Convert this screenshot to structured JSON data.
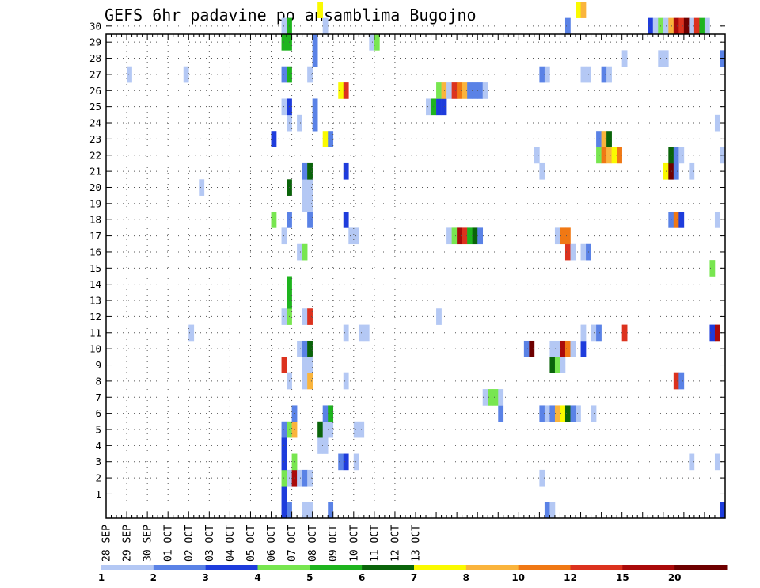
{
  "chart_data": {
    "type": "heatmap",
    "title": "GEFS 6hr padavine po ansamblima Bugojno",
    "xlabel": "",
    "ylabel": "",
    "x_tick_labels": [
      "28 SEP",
      "29 SEP",
      "30 SEP",
      "01 OCT",
      "02 OCT",
      "03 OCT",
      "04 OCT",
      "05 OCT",
      "06 OCT",
      "07 OCT",
      "08 OCT",
      "09 OCT",
      "10 OCT",
      "11 OCT",
      "12 OCT",
      "13 OCT"
    ],
    "x_step": "6hr",
    "y_tick_labels": [
      "1",
      "2",
      "3",
      "4",
      "5",
      "6",
      "7",
      "8",
      "9",
      "10",
      "11",
      "12",
      "13",
      "14",
      "15",
      "16",
      "17",
      "18",
      "19",
      "20",
      "21",
      "22",
      "23",
      "24",
      "25",
      "26",
      "27",
      "28",
      "29",
      "30"
    ],
    "ylim": [
      0,
      30
    ],
    "grid": true,
    "legend": {
      "position": "bottom",
      "thresholds": [
        "1",
        "2",
        "3",
        "4",
        "5",
        "6",
        "7",
        "8",
        "10",
        "12",
        "15",
        "20"
      ],
      "colors": [
        "#b4c8f4",
        "#5a82e6",
        "#1e3cdc",
        "#78e650",
        "#1eb41e",
        "#0a640a",
        "#fafa00",
        "#fab43c",
        "#f07814",
        "#dc321e",
        "#aa0a0a",
        "#6e0000"
      ]
    },
    "cells_note": "each cell: [member, forecast step index (0 = 28 SEP 00Z), color class 1-12]",
    "cells": [
      [
        0,
        34,
        3
      ],
      [
        0,
        35,
        2
      ],
      [
        0,
        38,
        1
      ],
      [
        0,
        39,
        1
      ],
      [
        0,
        43,
        2
      ],
      [
        0,
        85,
        2
      ],
      [
        0,
        86,
        1
      ],
      [
        0,
        119,
        3
      ],
      [
        1,
        34,
        3
      ],
      [
        2,
        34,
        4
      ],
      [
        2,
        35,
        1
      ],
      [
        2,
        36,
        11
      ],
      [
        2,
        37,
        1
      ],
      [
        2,
        38,
        2
      ],
      [
        2,
        39,
        1
      ],
      [
        2,
        84,
        1
      ],
      [
        3,
        34,
        3
      ],
      [
        3,
        36,
        4
      ],
      [
        3,
        45,
        2
      ],
      [
        3,
        46,
        3
      ],
      [
        3,
        48,
        1
      ],
      [
        3,
        113,
        1
      ],
      [
        3,
        118,
        1
      ],
      [
        4,
        34,
        3
      ],
      [
        4,
        41,
        1
      ],
      [
        4,
        42,
        1
      ],
      [
        5,
        34,
        2
      ],
      [
        5,
        35,
        4
      ],
      [
        5,
        36,
        8
      ],
      [
        5,
        41,
        6
      ],
      [
        5,
        42,
        1
      ],
      [
        5,
        43,
        1
      ],
      [
        5,
        48,
        1
      ],
      [
        5,
        49,
        1
      ],
      [
        6,
        36,
        2
      ],
      [
        6,
        42,
        2
      ],
      [
        6,
        43,
        5
      ],
      [
        6,
        76,
        2
      ],
      [
        6,
        84,
        2
      ],
      [
        6,
        85,
        1
      ],
      [
        6,
        86,
        2
      ],
      [
        6,
        87,
        8
      ],
      [
        6,
        88,
        7
      ],
      [
        6,
        89,
        6
      ],
      [
        6,
        90,
        2
      ],
      [
        6,
        91,
        1
      ],
      [
        6,
        94,
        1
      ],
      [
        7,
        73,
        1
      ],
      [
        7,
        74,
        4
      ],
      [
        7,
        75,
        4
      ],
      [
        7,
        76,
        1
      ],
      [
        8,
        35,
        1
      ],
      [
        8,
        38,
        1
      ],
      [
        8,
        39,
        8
      ],
      [
        8,
        46,
        1
      ],
      [
        8,
        110,
        10
      ],
      [
        8,
        111,
        2
      ],
      [
        9,
        34,
        10
      ],
      [
        9,
        38,
        1
      ],
      [
        9,
        39,
        1
      ],
      [
        9,
        86,
        6
      ],
      [
        9,
        87,
        4
      ],
      [
        9,
        88,
        1
      ],
      [
        10,
        37,
        1
      ],
      [
        10,
        38,
        2
      ],
      [
        10,
        39,
        6
      ],
      [
        10,
        81,
        2
      ],
      [
        10,
        82,
        12
      ],
      [
        10,
        86,
        1
      ],
      [
        10,
        87,
        1
      ],
      [
        10,
        88,
        11
      ],
      [
        10,
        89,
        9
      ],
      [
        10,
        90,
        1
      ],
      [
        10,
        92,
        3
      ],
      [
        11,
        16,
        1
      ],
      [
        11,
        46,
        1
      ],
      [
        11,
        49,
        1
      ],
      [
        11,
        50,
        1
      ],
      [
        11,
        92,
        1
      ],
      [
        11,
        94,
        1
      ],
      [
        11,
        95,
        2
      ],
      [
        11,
        100,
        10
      ],
      [
        11,
        117,
        3
      ],
      [
        11,
        118,
        11
      ],
      [
        12,
        34,
        1
      ],
      [
        12,
        35,
        4
      ],
      [
        12,
        38,
        1
      ],
      [
        12,
        39,
        10
      ],
      [
        12,
        64,
        1
      ],
      [
        13,
        35,
        5
      ],
      [
        14,
        35,
        5
      ],
      [
        15,
        117,
        4
      ],
      [
        16,
        37,
        1
      ],
      [
        16,
        38,
        4
      ],
      [
        16,
        89,
        10
      ],
      [
        16,
        90,
        1
      ],
      [
        16,
        92,
        1
      ],
      [
        16,
        93,
        2
      ],
      [
        17,
        34,
        1
      ],
      [
        17,
        47,
        1
      ],
      [
        17,
        48,
        1
      ],
      [
        17,
        66,
        1
      ],
      [
        17,
        67,
        4
      ],
      [
        17,
        68,
        11
      ],
      [
        17,
        69,
        10
      ],
      [
        17,
        70,
        5
      ],
      [
        17,
        71,
        6
      ],
      [
        17,
        72,
        2
      ],
      [
        17,
        87,
        1
      ],
      [
        17,
        88,
        9
      ],
      [
        17,
        89,
        9
      ],
      [
        18,
        32,
        4
      ],
      [
        18,
        35,
        2
      ],
      [
        18,
        39,
        2
      ],
      [
        18,
        46,
        3
      ],
      [
        18,
        109,
        2
      ],
      [
        18,
        110,
        9
      ],
      [
        18,
        111,
        3
      ],
      [
        18,
        118,
        1
      ],
      [
        19,
        38,
        1
      ],
      [
        19,
        39,
        1
      ],
      [
        20,
        18,
        1
      ],
      [
        20,
        35,
        6
      ],
      [
        20,
        38,
        1
      ],
      [
        20,
        39,
        1
      ],
      [
        21,
        38,
        2
      ],
      [
        21,
        39,
        6
      ],
      [
        21,
        46,
        3
      ],
      [
        21,
        84,
        1
      ],
      [
        21,
        108,
        7
      ],
      [
        21,
        109,
        12
      ],
      [
        21,
        110,
        2
      ],
      [
        21,
        113,
        1
      ],
      [
        22,
        83,
        1
      ],
      [
        22,
        95,
        4
      ],
      [
        22,
        96,
        9
      ],
      [
        22,
        97,
        8
      ],
      [
        22,
        98,
        7
      ],
      [
        22,
        99,
        9
      ],
      [
        22,
        109,
        6
      ],
      [
        22,
        110,
        2
      ],
      [
        22,
        111,
        1
      ],
      [
        22,
        119,
        1
      ],
      [
        23,
        32,
        3
      ],
      [
        23,
        42,
        7
      ],
      [
        23,
        43,
        2
      ],
      [
        23,
        95,
        2
      ],
      [
        23,
        96,
        8
      ],
      [
        23,
        97,
        6
      ],
      [
        24,
        35,
        1
      ],
      [
        24,
        37,
        1
      ],
      [
        24,
        40,
        2
      ],
      [
        24,
        118,
        1
      ],
      [
        25,
        34,
        1
      ],
      [
        25,
        35,
        3
      ],
      [
        25,
        40,
        2
      ],
      [
        25,
        62,
        1
      ],
      [
        25,
        63,
        5
      ],
      [
        25,
        64,
        3
      ],
      [
        25,
        65,
        3
      ],
      [
        25,
        120,
        8
      ],
      [
        26,
        45,
        7
      ],
      [
        26,
        46,
        10
      ],
      [
        26,
        64,
        4
      ],
      [
        26,
        65,
        8
      ],
      [
        26,
        66,
        1
      ],
      [
        26,
        67,
        10
      ],
      [
        26,
        68,
        9
      ],
      [
        26,
        69,
        8
      ],
      [
        26,
        70,
        2
      ],
      [
        26,
        71,
        2
      ],
      [
        26,
        72,
        2
      ],
      [
        26,
        73,
        1
      ],
      [
        27,
        4,
        1
      ],
      [
        27,
        15,
        1
      ],
      [
        27,
        34,
        2
      ],
      [
        27,
        35,
        5
      ],
      [
        27,
        39,
        1
      ],
      [
        27,
        84,
        2
      ],
      [
        27,
        85,
        1
      ],
      [
        27,
        92,
        1
      ],
      [
        27,
        93,
        1
      ],
      [
        27,
        96,
        2
      ],
      [
        27,
        97,
        1
      ],
      [
        28,
        40,
        2
      ],
      [
        28,
        100,
        1
      ],
      [
        28,
        107,
        1
      ],
      [
        28,
        108,
        1
      ],
      [
        28,
        119,
        2
      ],
      [
        29,
        34,
        5
      ],
      [
        29,
        35,
        5
      ],
      [
        29,
        40,
        2
      ],
      [
        29,
        51,
        1
      ],
      [
        29,
        52,
        4
      ],
      [
        30,
        34,
        1
      ],
      [
        30,
        35,
        5
      ],
      [
        30,
        42,
        1
      ],
      [
        30,
        89,
        2
      ],
      [
        30,
        105,
        3
      ],
      [
        30,
        106,
        1
      ],
      [
        30,
        107,
        4
      ],
      [
        30,
        108,
        1
      ],
      [
        30,
        109,
        8
      ],
      [
        30,
        110,
        11
      ],
      [
        30,
        111,
        10
      ],
      [
        30,
        112,
        12
      ],
      [
        30,
        113,
        1
      ],
      [
        30,
        114,
        10
      ],
      [
        30,
        115,
        5
      ],
      [
        30,
        116,
        1
      ],
      [
        31,
        41,
        7
      ],
      [
        31,
        91,
        7
      ],
      [
        31,
        92,
        8
      ]
    ]
  }
}
